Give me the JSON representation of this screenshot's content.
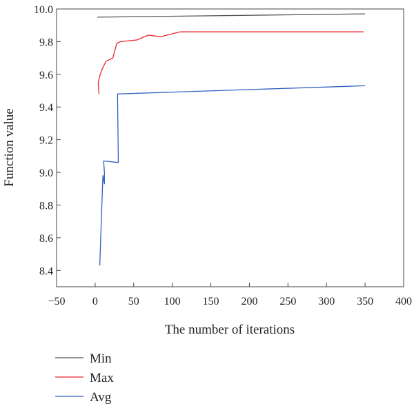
{
  "chart_data": {
    "type": "line",
    "title": "",
    "xlabel": "The number of iterations",
    "ylabel": "Function value",
    "xlim": [
      -50,
      400
    ],
    "ylim": [
      8.3,
      10.0
    ],
    "xticks": [
      -50,
      0,
      50,
      100,
      150,
      200,
      250,
      300,
      350,
      400
    ],
    "yticks": [
      8.4,
      8.6,
      8.8,
      9.0,
      9.2,
      9.4,
      9.6,
      9.8,
      10.0
    ],
    "xtick_labels": [
      "−50",
      "0",
      "50",
      "100",
      "150",
      "200",
      "250",
      "300",
      "350",
      "400"
    ],
    "ytick_labels": [
      "8.4",
      "8.6",
      "8.8",
      "9.0",
      "9.2",
      "9.4",
      "9.6",
      "9.8",
      "10.0"
    ],
    "grid": false,
    "legend_position": "bottom-left",
    "series": [
      {
        "name": "Min",
        "color": "#555555",
        "x": [
          3,
          350
        ],
        "y": [
          9.95,
          9.97
        ]
      },
      {
        "name": "Max",
        "color": "#e8262b",
        "x": [
          5,
          4,
          6,
          9,
          14,
          23,
          28,
          33,
          54,
          69,
          85,
          110,
          348
        ],
        "y": [
          9.48,
          9.55,
          9.59,
          9.63,
          9.68,
          9.7,
          9.79,
          9.8,
          9.81,
          9.84,
          9.83,
          9.86,
          9.86
        ]
      },
      {
        "name": "Avg",
        "color": "#2f5fbf",
        "x": [
          6,
          10,
          12,
          12,
          11,
          30,
          30,
          29,
          350
        ],
        "y": [
          8.43,
          8.98,
          8.93,
          9.0,
          9.07,
          9.06,
          9.1,
          9.48,
          9.53
        ]
      }
    ]
  }
}
